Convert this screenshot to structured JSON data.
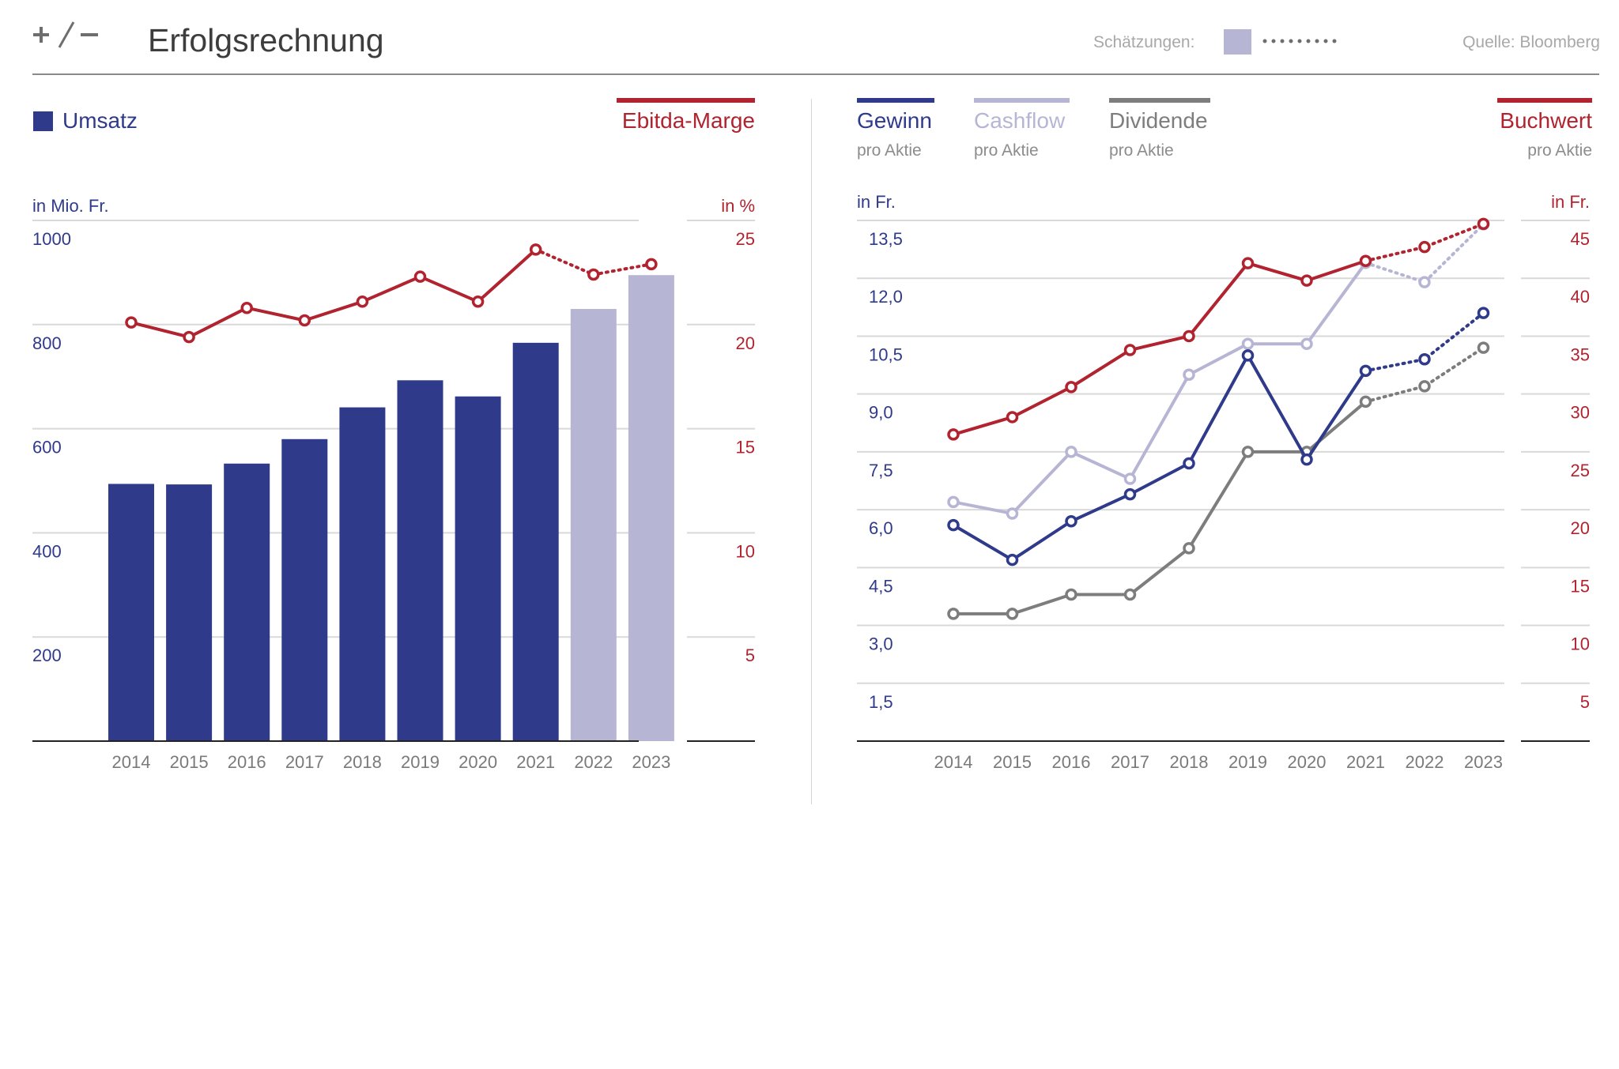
{
  "header": {
    "title": "Erfolgsrechnung",
    "estimates_label": "Schätzungen:",
    "source": "Quelle: Bloomberg"
  },
  "colors": {
    "navy": "#2f3a8a",
    "estimate": "#b7b5d4",
    "red": "#b0232f",
    "gray": "#7d7d7d",
    "lilac": "#b7b5d4",
    "grid": "#d9d9d9",
    "axis": "#222222",
    "tick": "#7a7a7a"
  },
  "left_panel": {
    "legend_bars": "Umsatz",
    "legend_line": "Ebitda-Marge",
    "y_left_unit": "in Mio. Fr.",
    "y_right_unit": "in %"
  },
  "right_panel": {
    "legend": [
      {
        "name": "Gewinn",
        "sub": "pro Aktie"
      },
      {
        "name": "Cashflow",
        "sub": "pro Aktie"
      },
      {
        "name": "Dividende",
        "sub": "pro Aktie"
      },
      {
        "name": "Buchwert",
        "sub": "pro Aktie"
      }
    ],
    "y_left_unit": "in Fr.",
    "y_right_unit": "in Fr."
  },
  "chart_data": [
    {
      "type": "bar",
      "categories": [
        "2014",
        "2015",
        "2016",
        "2017",
        "2018",
        "2019",
        "2020",
        "2021",
        "2022",
        "2023"
      ],
      "series": [
        {
          "name": "Umsatz",
          "values": [
            494,
            493,
            533,
            580,
            641,
            693,
            662,
            765,
            830,
            895
          ],
          "estimate_from_index": 8,
          "axis": "left"
        },
        {
          "name": "Ebitda-Marge",
          "type": "line",
          "values": [
            20.1,
            19.4,
            20.8,
            20.2,
            21.1,
            22.3,
            21.1,
            23.6,
            22.4,
            22.9
          ],
          "estimate_from_index": 7,
          "axis": "right"
        }
      ],
      "y_left": {
        "label": "in Mio. Fr.",
        "ylim": [
          0,
          1000
        ],
        "ticks": [
          "200",
          "400",
          "600",
          "800",
          "1000"
        ]
      },
      "y_right": {
        "label": "in %",
        "ylim": [
          0,
          25
        ],
        "ticks": [
          "5",
          "10",
          "15",
          "20",
          "25"
        ]
      },
      "grid": true
    },
    {
      "type": "line",
      "categories": [
        "2014",
        "2015",
        "2016",
        "2017",
        "2018",
        "2019",
        "2020",
        "2021",
        "2022",
        "2023"
      ],
      "series": [
        {
          "name": "Gewinn",
          "values": [
            5.6,
            4.7,
            5.7,
            6.4,
            7.2,
            10.0,
            7.3,
            9.6,
            9.9,
            11.1
          ],
          "estimate_from_index": 7,
          "axis": "left"
        },
        {
          "name": "Cashflow",
          "values": [
            6.2,
            5.9,
            7.5,
            6.8,
            9.5,
            10.3,
            10.3,
            12.4,
            11.9,
            13.4
          ],
          "estimate_from_index": 7,
          "axis": "left"
        },
        {
          "name": "Dividende",
          "values": [
            3.3,
            3.3,
            3.8,
            3.8,
            5.0,
            7.5,
            7.5,
            8.8,
            9.2,
            10.2
          ],
          "estimate_from_index": 7,
          "axis": "left"
        },
        {
          "name": "Buchwert",
          "values": [
            26.5,
            28.0,
            30.6,
            33.8,
            35.0,
            41.3,
            39.8,
            41.5,
            42.7,
            44.7
          ],
          "estimate_from_index": 7,
          "axis": "right"
        }
      ],
      "y_left": {
        "label": "in Fr.",
        "ylim": [
          0,
          13.5
        ],
        "ticks": [
          "1,5",
          "3,0",
          "4,5",
          "6,0",
          "7,5",
          "9,0",
          "10,5",
          "12,0",
          "13,5"
        ]
      },
      "y_right": {
        "label": "in Fr.",
        "ylim": [
          0,
          45
        ],
        "ticks": [
          "5",
          "10",
          "15",
          "20",
          "25",
          "30",
          "35",
          "40",
          "45"
        ]
      },
      "grid": true
    }
  ]
}
